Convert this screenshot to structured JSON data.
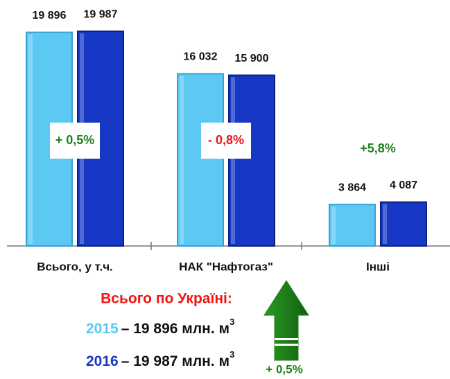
{
  "chart_data": {
    "type": "bar",
    "categories": [
      "Всього, у т.ч.",
      "НАК \"Нафтогаз\"",
      "Інші"
    ],
    "series": [
      {
        "name": "2015",
        "color": "#5cc8f4",
        "values": [
          19896,
          16032,
          3864
        ],
        "value_labels": [
          "19 896",
          "16 032",
          "3 864"
        ]
      },
      {
        "name": "2016",
        "color": "#1638c4",
        "values": [
          19987,
          15900,
          4087
        ],
        "value_labels": [
          "19 987",
          "15 900",
          "4 087"
        ]
      }
    ],
    "ylim": [
      0,
      20000
    ],
    "annotations": [
      {
        "text": "+ 0,5%",
        "color": "#1d7f1d",
        "box": true
      },
      {
        "text": "- 0,8%",
        "color": "#e8141c",
        "box": true
      },
      {
        "text": "+5,8%",
        "color": "#1d7f1d",
        "box": false
      }
    ],
    "summary": {
      "title": "Всього по Україні:",
      "title_color": "#f01414",
      "lines": [
        {
          "text": "– 19 896 млн. м",
          "sup": "3"
        },
        {
          "text": "– 19 987 млн. м",
          "sup": "3"
        }
      ],
      "arrow_label": "+ 0,5%",
      "arrow_color": "#1f7f1a"
    }
  }
}
